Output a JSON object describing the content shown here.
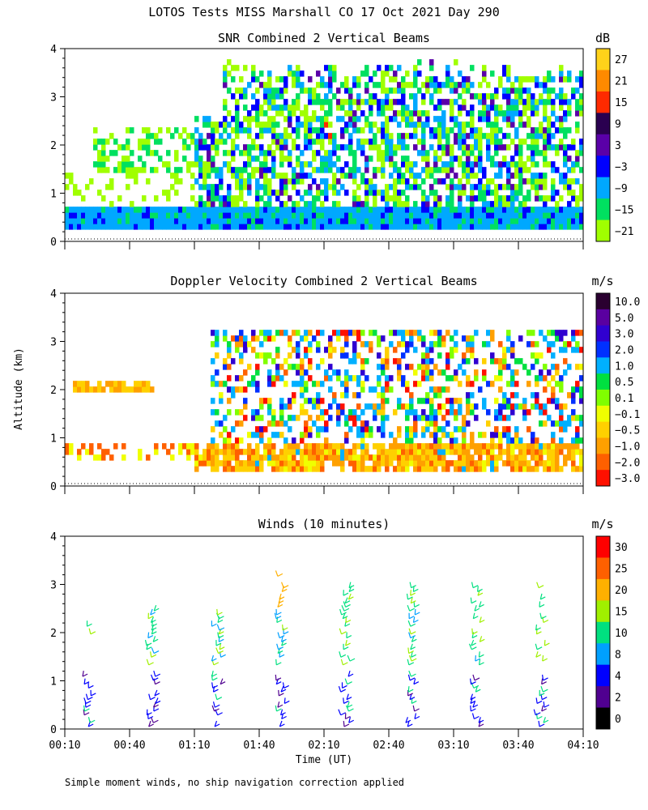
{
  "page": {
    "title": "LOTOS Tests MISS Marshall CO  17 Oct 2021 Day 290",
    "ylabel": "Altitude (km)",
    "xlabel": "Time (UT)",
    "footnote": "Simple moment winds, no ship navigation correction applied"
  },
  "time_ticks": [
    "00:10",
    "00:40",
    "01:10",
    "01:40",
    "02:10",
    "02:40",
    "03:10",
    "03:40",
    "04:10"
  ],
  "alt_ticks": [
    "0",
    "1",
    "2",
    "3",
    "4"
  ],
  "chart_data": [
    {
      "type": "heatmap",
      "title": "SNR Combined 2 Vertical Beams",
      "colorbar": {
        "unit": "dB",
        "labels": [
          "27",
          "21",
          "15",
          "9",
          "3",
          "−3",
          "−9",
          "−15",
          "−21"
        ],
        "colors": [
          "#ffd21a",
          "#ff8a00",
          "#ff2a00",
          "#2a0050",
          "#5a00a8",
          "#0000ff",
          "#00a8ff",
          "#00e060",
          "#a0ff00"
        ]
      },
      "xlim": [
        "00:10",
        "04:10"
      ],
      "ylim": [
        0,
        4
      ],
      "note": "SNR high near 0.3–0.7 km throughout; echoes up to ~3.5 km after 01:20 UT"
    },
    {
      "type": "heatmap",
      "title": "Doppler Velocity Combined 2 Vertical Beams",
      "colorbar": {
        "unit": "m/s",
        "labels": [
          "10.0",
          "5.0",
          "3.0",
          "2.0",
          "1.0",
          "0.5",
          "0.1",
          "−0.1",
          "−0.5",
          "−1.0",
          "−2.0",
          "−3.0"
        ],
        "colors": [
          "#2a0030",
          "#5a00a0",
          "#3000d0",
          "#0030ff",
          "#00b0ff",
          "#00e040",
          "#80ff00",
          "#f0ff00",
          "#ffd000",
          "#ffa000",
          "#ff6000",
          "#ff1000"
        ]
      },
      "xlim": [
        "00:10",
        "04:10"
      ],
      "ylim": [
        0,
        4
      ]
    },
    {
      "type": "scatter",
      "title": "Winds (10 minutes)",
      "colorbar": {
        "unit": "m/s",
        "labels": [
          "30",
          "25",
          "20",
          "15",
          "10",
          "8",
          "4",
          "2",
          "0"
        ],
        "colors": [
          "#ff0000",
          "#ff6000",
          "#ffb000",
          "#a0f000",
          "#00e080",
          "#00a0ff",
          "#0000ff",
          "#500090",
          "#000000"
        ]
      },
      "profile_times": [
        "00:20",
        "00:50",
        "01:20",
        "01:50",
        "02:20",
        "02:50",
        "03:20",
        "03:50"
      ],
      "xlim": [
        "00:10",
        "04:10"
      ],
      "ylim": [
        0,
        4
      ]
    }
  ]
}
